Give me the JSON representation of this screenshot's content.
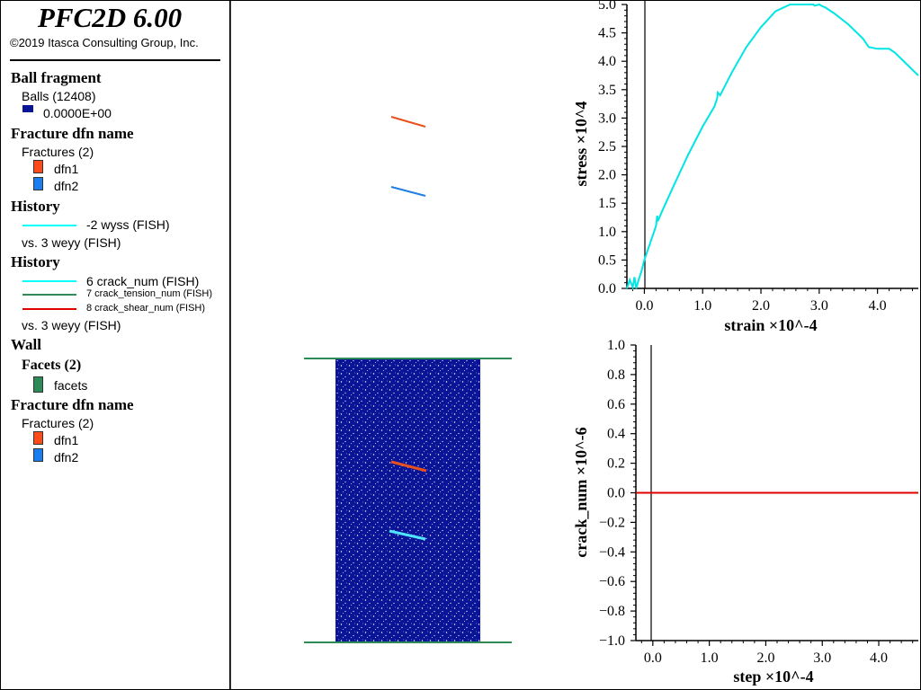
{
  "window": {
    "app_title": "PFC2D 6.00",
    "copyright": "©2019 Itasca Consulting Group, Inc."
  },
  "legend": {
    "ball_fragment": {
      "heading": "Ball fragment",
      "balls_label": "Balls (12408)",
      "value_label": "0.0000E+00",
      "color": "#0a1496"
    },
    "fracture1": {
      "heading": "Fracture dfn name",
      "group_label": "Fractures (2)",
      "items": [
        {
          "label": "dfn1",
          "color": "#ff4a1a"
        },
        {
          "label": "dfn2",
          "color": "#1a7ef0"
        }
      ]
    },
    "history1": {
      "heading": "History",
      "series_label": "-2 wyss (FISH)",
      "series_color": "#00ffff",
      "vs_label": "vs. 3 weyy (FISH)"
    },
    "history2": {
      "heading": "History",
      "series": [
        {
          "label": "6 crack_num (FISH)",
          "color": "#00ffff"
        },
        {
          "label": "7 crack_tension_num (FISH)",
          "color": "#2e8b57"
        },
        {
          "label": "8 crack_shear_num (FISH)",
          "color": "#e00000"
        }
      ],
      "vs_label": "vs. 3 weyy (FISH)"
    },
    "wall": {
      "heading": "Wall",
      "facets_heading": "Facets (2)",
      "facets_label": "facets",
      "facets_color": "#2e8b57"
    },
    "fracture2": {
      "heading": "Fracture dfn name",
      "group_label": "Fractures (2)",
      "items": [
        {
          "label": "dfn1",
          "color": "#ff4a1a"
        },
        {
          "label": "dfn2",
          "color": "#1a7ef0"
        }
      ]
    }
  },
  "colors": {
    "ball": "#0a1496",
    "wall": "#2e8b57",
    "dfn1": "#e8501e",
    "dfn2": "#1f7fe0",
    "stress_curve": "#00e5e5",
    "crack_curve": "#e00000"
  },
  "chart_data": [
    {
      "type": "line",
      "title": "",
      "xlabel": "strain ×10^-4",
      "ylabel": "stress ×10^4",
      "xlim": [
        -0.3,
        4.7
      ],
      "ylim": [
        0.0,
        5.0
      ],
      "xticks": [
        0.0,
        1.0,
        2.0,
        3.0,
        4.0
      ],
      "xtick_labels": [
        "0.0",
        "1.0",
        "2.0",
        "3.0",
        "4.0"
      ],
      "yticks": [
        0.0,
        0.5,
        1.0,
        1.5,
        2.0,
        2.5,
        3.0,
        3.5,
        4.0,
        4.5,
        5.0
      ],
      "ytick_labels": [
        "0.0",
        "0.5",
        "1.0",
        "1.5",
        "2.0",
        "2.5",
        "3.0",
        "3.5",
        "4.0",
        "4.5",
        "5.0"
      ],
      "series": [
        {
          "name": "",
          "x": [
            -0.3,
            -0.25,
            -0.2,
            -0.17,
            -0.14,
            -0.1,
            -0.05,
            0.0,
            0.1,
            0.2,
            0.22,
            0.23,
            0.3,
            0.5,
            0.75,
            1.0,
            1.2,
            1.25,
            1.26,
            1.3,
            1.5,
            1.75,
            2.0,
            2.25,
            2.5,
            2.75,
            2.85,
            2.9,
            2.92,
            3.0,
            3.05,
            3.1,
            3.25,
            3.5,
            3.75,
            3.85,
            4.0,
            4.2,
            4.3,
            4.5,
            4.7
          ],
          "y": [
            0.0,
            0.15,
            0.02,
            0.2,
            0.0,
            0.15,
            0.3,
            0.5,
            0.8,
            1.1,
            1.28,
            1.18,
            1.35,
            1.8,
            2.35,
            2.85,
            3.2,
            3.35,
            3.45,
            3.4,
            3.8,
            4.25,
            4.6,
            4.88,
            5.0,
            5.02,
            5.0,
            5.05,
            4.98,
            5.05,
            4.97,
            4.95,
            4.85,
            4.65,
            4.4,
            4.25,
            4.22,
            4.22,
            4.15,
            3.95,
            3.75
          ]
        }
      ]
    },
    {
      "type": "line",
      "title": "",
      "xlabel": "step ×10^-4",
      "ylabel": "crack_num ×10^-6",
      "xlim": [
        -0.3,
        4.7
      ],
      "ylim": [
        -1.0,
        1.0
      ],
      "xticks": [
        0.0,
        1.0,
        2.0,
        3.0,
        4.0
      ],
      "xtick_labels": [
        "0.0",
        "1.0",
        "2.0",
        "3.0",
        "4.0"
      ],
      "yticks": [
        -1.0,
        -0.8,
        -0.6,
        -0.4,
        -0.2,
        0.0,
        0.2,
        0.4,
        0.6,
        0.8,
        1.0
      ],
      "ytick_labels": [
        "−1.0",
        "−0.8",
        "−0.6",
        "−0.4",
        "−0.2",
        "0.0",
        "0.2",
        "0.4",
        "0.6",
        "0.8",
        "1.0"
      ],
      "series": [
        {
          "name": "",
          "x": [
            -0.3,
            4.7
          ],
          "y": [
            0.0,
            0.0
          ]
        }
      ]
    }
  ]
}
